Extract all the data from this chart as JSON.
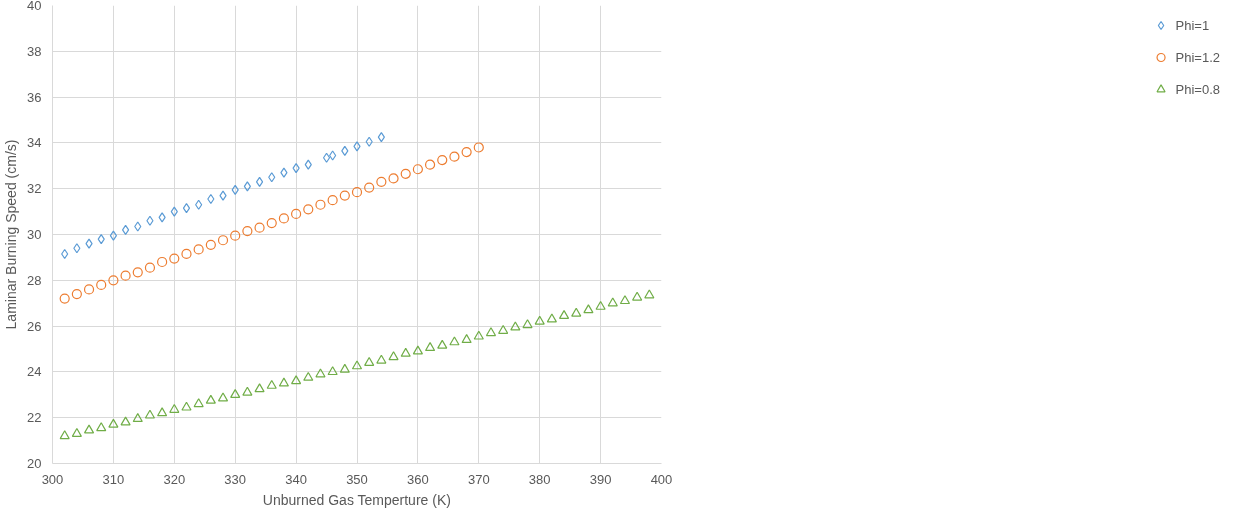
{
  "chart_data": {
    "type": "scatter",
    "xlabel": "Unburned Gas Temperture (K)",
    "ylabel": "Laminar Burning Speed (cm/s)",
    "xlim": [
      300,
      400
    ],
    "xticks": [
      300,
      310,
      320,
      330,
      340,
      350,
      360,
      370,
      380,
      390,
      400
    ],
    "ylim": [
      20,
      40
    ],
    "yticks": [
      20,
      22,
      24,
      26,
      28,
      30,
      32,
      34,
      36,
      38,
      40
    ],
    "grid": true,
    "legend": "right",
    "series": [
      {
        "name": "Phi=1",
        "color": "#5b9bd5",
        "marker": "diamond",
        "x": [
          302,
          304,
          306,
          308,
          310,
          312,
          314,
          316,
          318,
          320,
          322,
          324,
          326,
          328,
          330,
          332,
          334,
          336,
          338,
          340,
          342,
          345,
          346,
          348,
          350,
          352,
          354
        ],
        "values": [
          29.15,
          29.4,
          29.6,
          29.8,
          29.95,
          30.2,
          30.35,
          30.6,
          30.75,
          31.0,
          31.15,
          31.3,
          31.55,
          31.7,
          31.95,
          32.1,
          32.3,
          32.5,
          32.7,
          32.9,
          33.05,
          33.35,
          33.45,
          33.65,
          33.85,
          34.05,
          34.25
        ]
      },
      {
        "name": "Phi=1.2",
        "color": "#ed7d31",
        "marker": "circle",
        "x": [
          302,
          304,
          306,
          308,
          310,
          312,
          314,
          316,
          318,
          320,
          322,
          324,
          326,
          328,
          330,
          332,
          334,
          336,
          338,
          340,
          342,
          344,
          346,
          348,
          350,
          352,
          354,
          356,
          358,
          360,
          362,
          364,
          366,
          368,
          370
        ],
        "values": [
          27.2,
          27.4,
          27.6,
          27.8,
          28.0,
          28.2,
          28.35,
          28.55,
          28.8,
          28.95,
          29.15,
          29.35,
          29.55,
          29.75,
          29.95,
          30.15,
          30.3,
          30.5,
          30.7,
          30.9,
          31.1,
          31.3,
          31.5,
          31.7,
          31.85,
          32.05,
          32.3,
          32.45,
          32.65,
          32.85,
          33.05,
          33.25,
          33.4,
          33.6,
          33.8
        ]
      },
      {
        "name": "Phi=0.8",
        "color": "#70ad47",
        "marker": "triangle",
        "x": [
          302,
          304,
          306,
          308,
          310,
          312,
          314,
          316,
          318,
          320,
          322,
          324,
          326,
          328,
          330,
          332,
          334,
          336,
          338,
          340,
          342,
          344,
          346,
          348,
          350,
          352,
          354,
          356,
          358,
          360,
          362,
          364,
          366,
          368,
          370,
          372,
          374,
          376,
          378,
          380,
          382,
          384,
          386,
          388,
          390,
          392,
          394,
          396,
          398
        ],
        "values": [
          21.2,
          21.3,
          21.45,
          21.55,
          21.7,
          21.8,
          21.95,
          22.1,
          22.2,
          22.35,
          22.45,
          22.6,
          22.75,
          22.85,
          23.0,
          23.1,
          23.25,
          23.4,
          23.5,
          23.6,
          23.75,
          23.9,
          24.0,
          24.1,
          24.25,
          24.4,
          24.5,
          24.65,
          24.8,
          24.9,
          25.05,
          25.15,
          25.3,
          25.4,
          25.55,
          25.7,
          25.8,
          25.95,
          26.05,
          26.2,
          26.3,
          26.45,
          26.55,
          26.7,
          26.85,
          27.0,
          27.1,
          27.25,
          27.35
        ]
      }
    ]
  }
}
